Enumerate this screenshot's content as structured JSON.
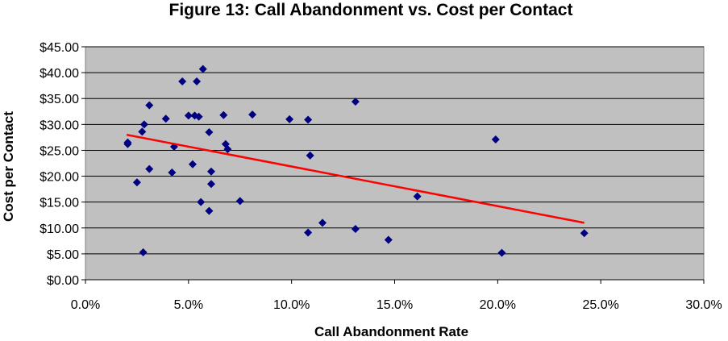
{
  "chart_data": {
    "type": "scatter",
    "title": "Figure 13: Call Abandonment vs. Cost per Contact",
    "xlabel": "Call Abandonment Rate",
    "ylabel": "Cost per Contact",
    "xlim": [
      0,
      0.3
    ],
    "ylim": [
      0,
      45
    ],
    "x_ticks": [
      0,
      0.05,
      0.1,
      0.15,
      0.2,
      0.25,
      0.3
    ],
    "x_tick_labels": [
      "0.0%",
      "5.0%",
      "10.0%",
      "15.0%",
      "20.0%",
      "25.0%",
      "30.0%"
    ],
    "y_ticks": [
      0,
      5,
      10,
      15,
      20,
      25,
      30,
      35,
      40,
      45
    ],
    "y_tick_labels": [
      "$0.00",
      "$5.00",
      "$10.00",
      "$15.00",
      "$20.00",
      "$25.00",
      "$30.00",
      "$35.00",
      "$40.00",
      "$45.00"
    ],
    "grid": "horizontal",
    "colors": {
      "plot_bg": "#c0c0c0",
      "marker": "#000080",
      "trendline": "#ff0000"
    },
    "points": [
      [
        0.0205,
        26.5
      ],
      [
        0.0205,
        26.2
      ],
      [
        0.025,
        18.8
      ],
      [
        0.0275,
        28.6
      ],
      [
        0.0285,
        30.0
      ],
      [
        0.028,
        5.3
      ],
      [
        0.031,
        33.7
      ],
      [
        0.031,
        21.4
      ],
      [
        0.039,
        31.1
      ],
      [
        0.042,
        20.7
      ],
      [
        0.043,
        25.7
      ],
      [
        0.047,
        38.3
      ],
      [
        0.05,
        31.7
      ],
      [
        0.052,
        22.3
      ],
      [
        0.053,
        31.7
      ],
      [
        0.054,
        38.3
      ],
      [
        0.055,
        31.5
      ],
      [
        0.057,
        40.7
      ],
      [
        0.056,
        15.0
      ],
      [
        0.06,
        13.3
      ],
      [
        0.06,
        28.5
      ],
      [
        0.061,
        20.9
      ],
      [
        0.061,
        18.5
      ],
      [
        0.067,
        31.8
      ],
      [
        0.068,
        26.2
      ],
      [
        0.069,
        25.2
      ],
      [
        0.075,
        15.2
      ],
      [
        0.081,
        31.9
      ],
      [
        0.099,
        31.0
      ],
      [
        0.108,
        30.9
      ],
      [
        0.109,
        24.0
      ],
      [
        0.108,
        9.1
      ],
      [
        0.115,
        11.0
      ],
      [
        0.131,
        34.4
      ],
      [
        0.131,
        9.8
      ],
      [
        0.147,
        7.7
      ],
      [
        0.161,
        16.1
      ],
      [
        0.199,
        27.1
      ],
      [
        0.202,
        5.2
      ],
      [
        0.242,
        9.0
      ]
    ],
    "trendline": {
      "x": [
        0.02,
        0.242
      ],
      "y": [
        28.0,
        11.0
      ]
    }
  }
}
